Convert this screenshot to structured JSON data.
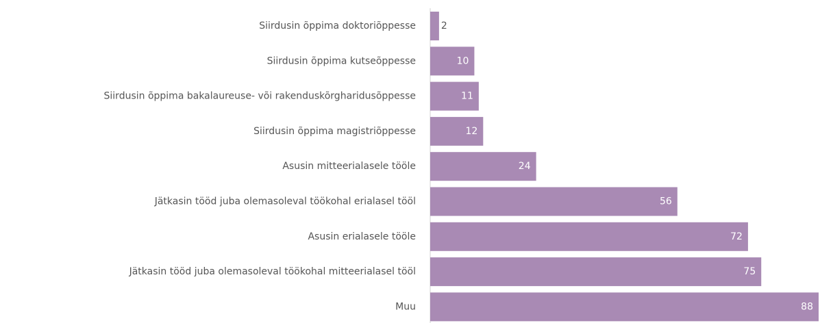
{
  "chart_data": {
    "type": "hbar",
    "categories": [
      "Siirdusin õppima doktoriõppesse",
      "Siirdusin õppima kutseõppesse",
      "Siirdusin õppima bakalaureuse- või rakenduskõrgharidusõppesse",
      "Siirdusin õppima magistriõppesse",
      "Asusin mitteerialasele tööle",
      "Jätkasin tööd juba olemasoleval töökohal erialasel tööl",
      "Asusin erialasele tööle",
      "Jätkasin tööd juba olemasoleval töökohal mitteerialasel tööl",
      "Muu"
    ],
    "values": [
      2,
      10,
      11,
      12,
      24,
      56,
      72,
      75,
      88
    ],
    "color": "#a98ab4"
  }
}
